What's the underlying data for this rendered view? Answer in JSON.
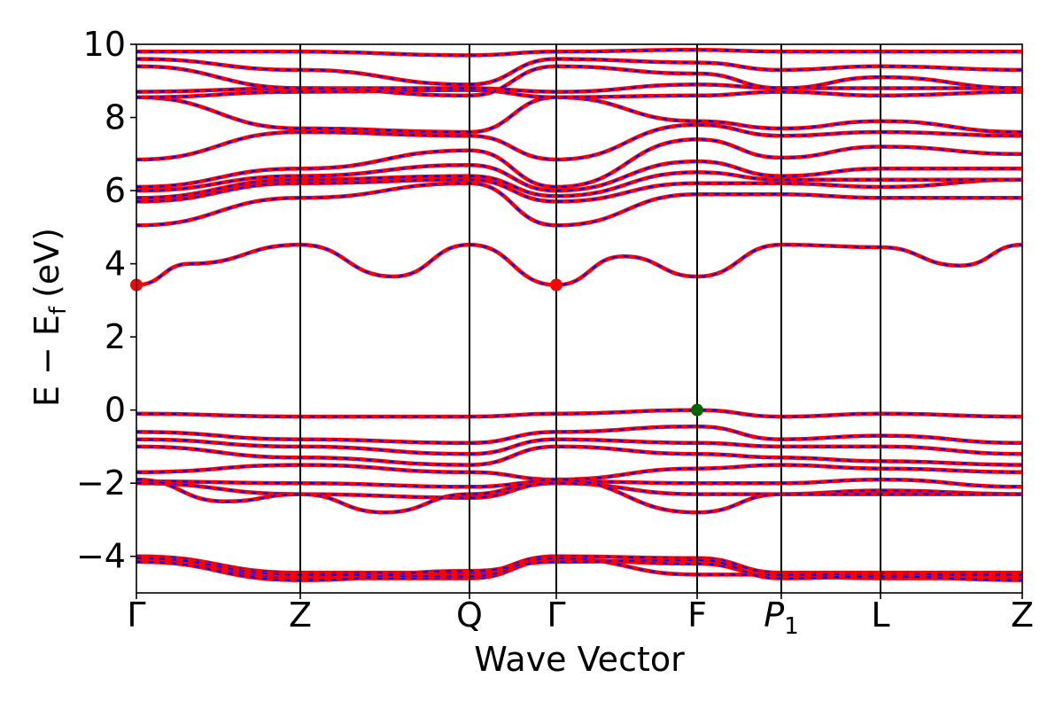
{
  "chart_data": {
    "type": "line",
    "xlabel": "Wave Vector",
    "ylabel": "E − E",
    "ylabel_subscript": "f",
    "ylabel_unit": "(eV)",
    "ylim": [
      -5,
      10
    ],
    "yticks": [
      -4,
      -2,
      0,
      2,
      4,
      6,
      8,
      10
    ],
    "ytick_labels": [
      "−4",
      "−2",
      "0",
      "2",
      "4",
      "6",
      "8",
      "10"
    ],
    "xlim": [
      0,
      1
    ],
    "kpoints": [
      {
        "label": "Γ",
        "x": 0.0
      },
      {
        "label": "Z",
        "x": 0.185
      },
      {
        "label": "Q",
        "x": 0.376
      },
      {
        "label": "Γ",
        "x": 0.474
      },
      {
        "label": "F",
        "x": 0.633
      },
      {
        "label": "P",
        "sub": "1",
        "italic": true,
        "x": 0.728
      },
      {
        "label": "L",
        "x": 0.84
      },
      {
        "label": "Z",
        "x": 1.0
      }
    ],
    "series": [
      {
        "style": "red solid line with blue dashed overlay",
        "color": "#ff0000",
        "overlay_color": "#0000ff"
      }
    ],
    "bands": [
      {
        "group": "cbm_band",
        "x": [
          0,
          0.06,
          0.185,
          0.29,
          0.376,
          0.474,
          0.55,
          0.633,
          0.728,
          0.84,
          0.93,
          1.0
        ],
        "y": [
          3.42,
          4.0,
          4.52,
          3.65,
          4.52,
          3.42,
          4.2,
          3.65,
          4.52,
          4.45,
          3.95,
          4.52
        ]
      },
      {
        "group": "valence",
        "x": [
          0,
          0.185,
          0.376,
          0.474,
          0.633,
          0.728,
          0.84,
          1.0
        ],
        "y": [
          -0.1,
          -0.18,
          -0.18,
          -0.1,
          0.0,
          -0.18,
          -0.1,
          -0.18
        ]
      },
      {
        "group": "valence",
        "x": [
          0,
          0.185,
          0.376,
          0.474,
          0.633,
          0.728,
          0.84,
          1.0
        ],
        "y": [
          -0.6,
          -0.8,
          -0.9,
          -0.6,
          -0.45,
          -0.8,
          -0.7,
          -0.9
        ]
      },
      {
        "group": "valence",
        "x": [
          0,
          0.185,
          0.376,
          0.474,
          0.633,
          0.728,
          0.84,
          1.0
        ],
        "y": [
          -0.8,
          -1.0,
          -1.2,
          -0.8,
          -0.9,
          -1.0,
          -1.0,
          -1.2
        ]
      },
      {
        "group": "valence",
        "x": [
          0,
          0.185,
          0.376,
          0.474,
          0.633,
          0.728,
          0.84,
          1.0
        ],
        "y": [
          -1.0,
          -1.3,
          -1.5,
          -1.0,
          -1.2,
          -1.3,
          -1.4,
          -1.5
        ]
      },
      {
        "group": "valence",
        "x": [
          0,
          0.185,
          0.376,
          0.474,
          0.633,
          0.728,
          0.84,
          1.0
        ],
        "y": [
          -1.7,
          -1.5,
          -1.7,
          -1.9,
          -1.6,
          -1.5,
          -1.6,
          -1.7
        ]
      },
      {
        "group": "valence",
        "x": [
          0,
          0.185,
          0.376,
          0.474,
          0.633,
          0.728,
          0.84,
          1.0
        ],
        "y": [
          -1.95,
          -2.0,
          -2.1,
          -1.95,
          -2.0,
          -2.0,
          -1.9,
          -2.1
        ]
      },
      {
        "group": "valence",
        "x": [
          0,
          0.185,
          0.376,
          0.474,
          0.633,
          0.728,
          0.84,
          1.0
        ],
        "y": [
          -2.0,
          -2.3,
          -2.4,
          -2.0,
          -2.3,
          -2.3,
          -2.2,
          -2.3
        ]
      },
      {
        "group": "valence",
        "x": [
          0,
          0.1,
          0.185,
          0.28,
          0.376,
          0.474,
          0.633,
          0.728,
          0.84,
          1.0
        ],
        "y": [
          -1.9,
          -2.5,
          -2.3,
          -2.8,
          -2.3,
          -1.9,
          -2.8,
          -2.3,
          -2.3,
          -2.3
        ]
      },
      {
        "group": "deep",
        "x": [
          0,
          0.185,
          0.376,
          0.474,
          0.633,
          0.728,
          0.84,
          1.0
        ],
        "y": [
          -4.0,
          -4.45,
          -4.45,
          -4.0,
          -4.05,
          -4.45,
          -4.45,
          -4.45
        ]
      },
      {
        "group": "deep",
        "x": [
          0,
          0.185,
          0.376,
          0.474,
          0.633,
          0.728,
          0.84,
          1.0
        ],
        "y": [
          -4.1,
          -4.6,
          -4.6,
          -4.1,
          -4.2,
          -4.55,
          -4.6,
          -4.6
        ]
      },
      {
        "group": "deep",
        "x": [
          0,
          0.185,
          0.376,
          0.474,
          0.633,
          0.728,
          0.84,
          1.0
        ],
        "y": [
          -4.05,
          -4.5,
          -4.55,
          -4.05,
          -4.5,
          -4.5,
          -4.5,
          -4.5
        ]
      },
      {
        "group": "deep",
        "x": [
          0,
          0.185,
          0.376,
          0.474,
          0.633,
          0.728,
          0.84,
          1.0
        ],
        "y": [
          -4.15,
          -4.65,
          -4.4,
          -4.15,
          -4.1,
          -4.6,
          -4.55,
          -4.65
        ]
      },
      {
        "group": "conduction",
        "x": [
          0,
          0.185,
          0.376,
          0.474,
          0.633,
          0.728,
          0.84,
          1.0
        ],
        "y": [
          5.05,
          5.8,
          6.2,
          5.05,
          5.9,
          5.9,
          5.8,
          5.8
        ]
      },
      {
        "group": "conduction",
        "x": [
          0,
          0.185,
          0.376,
          0.474,
          0.633,
          0.728,
          0.84,
          1.0
        ],
        "y": [
          5.7,
          6.2,
          6.3,
          5.7,
          6.2,
          6.2,
          6.1,
          6.3
        ]
      },
      {
        "group": "conduction",
        "x": [
          0,
          0.185,
          0.376,
          0.474,
          0.633,
          0.728,
          0.84,
          1.0
        ],
        "y": [
          5.8,
          6.3,
          6.4,
          5.85,
          6.5,
          6.3,
          6.3,
          6.3
        ]
      },
      {
        "group": "conduction",
        "x": [
          0,
          0.185,
          0.376,
          0.474,
          0.633,
          0.728,
          0.84,
          1.0
        ],
        "y": [
          6.0,
          6.4,
          6.7,
          6.0,
          6.8,
          6.4,
          6.6,
          6.6
        ]
      },
      {
        "group": "conduction",
        "x": [
          0,
          0.185,
          0.376,
          0.474,
          0.633,
          0.728,
          0.84,
          1.0
        ],
        "y": [
          6.1,
          6.6,
          7.1,
          6.1,
          7.4,
          6.9,
          7.2,
          7.0
        ]
      },
      {
        "group": "conduction",
        "x": [
          0,
          0.185,
          0.376,
          0.474,
          0.633,
          0.728,
          0.84,
          1.0
        ],
        "y": [
          6.85,
          7.6,
          7.5,
          6.85,
          7.8,
          7.5,
          7.6,
          7.5
        ]
      },
      {
        "group": "conduction",
        "x": [
          0,
          0.185,
          0.376,
          0.474,
          0.633,
          0.728,
          0.84,
          1.0
        ],
        "y": [
          8.55,
          7.7,
          7.6,
          8.55,
          7.9,
          7.7,
          7.9,
          7.6
        ]
      },
      {
        "group": "conduction",
        "x": [
          0,
          0.185,
          0.376,
          0.474,
          0.633,
          0.728,
          0.84,
          1.0
        ],
        "y": [
          8.55,
          8.7,
          8.75,
          8.55,
          8.6,
          8.7,
          8.6,
          8.7
        ]
      },
      {
        "group": "conduction",
        "x": [
          0,
          0.185,
          0.376,
          0.474,
          0.633,
          0.728,
          0.84,
          1.0
        ],
        "y": [
          8.7,
          8.8,
          8.8,
          8.7,
          8.9,
          8.8,
          8.8,
          8.8
        ]
      },
      {
        "group": "conduction",
        "x": [
          0,
          0.185,
          0.376,
          0.474,
          0.633,
          0.728,
          0.84,
          1.0
        ],
        "y": [
          9.4,
          8.8,
          8.6,
          9.4,
          9.2,
          8.8,
          9.1,
          8.8
        ]
      },
      {
        "group": "conduction",
        "x": [
          0,
          0.185,
          0.376,
          0.474,
          0.633,
          0.728,
          0.84,
          1.0
        ],
        "y": [
          9.6,
          9.3,
          8.9,
          9.6,
          9.5,
          9.3,
          9.4,
          9.3
        ]
      },
      {
        "group": "conduction",
        "x": [
          0,
          0.185,
          0.376,
          0.474,
          0.633,
          0.728,
          0.84,
          1.0
        ],
        "y": [
          9.8,
          9.8,
          9.7,
          9.8,
          9.85,
          9.8,
          9.8,
          9.8
        ]
      }
    ],
    "markers": [
      {
        "x": 0.0,
        "y": 3.42,
        "color": "#ff0000"
      },
      {
        "x": 0.474,
        "y": 3.42,
        "color": "#ff0000"
      },
      {
        "x": 0.633,
        "y": 0.0,
        "color": "#006400"
      }
    ]
  }
}
